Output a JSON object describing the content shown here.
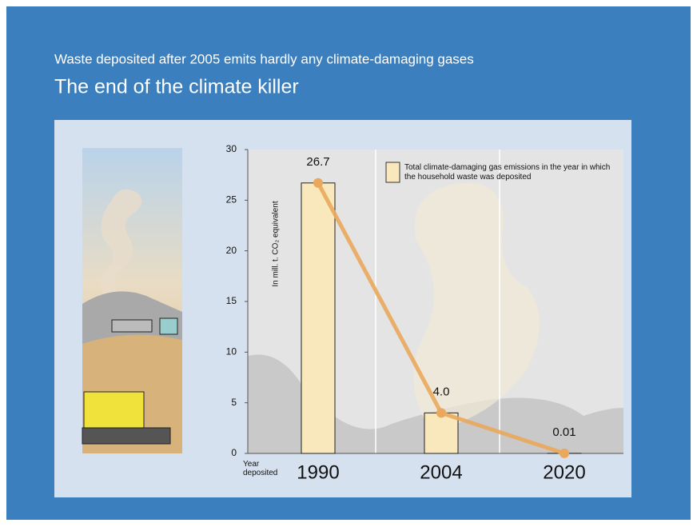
{
  "chart_data": {
    "type": "bar",
    "subtitle": "Waste deposited after 2005 emits hardly any climate-damaging gases",
    "title": "The end of the climate killer",
    "y_label": "In mill. t. CO₂ equivalent",
    "x_label": "Year deposited",
    "categories": [
      "1990",
      "2004",
      "2020"
    ],
    "series": [
      {
        "name": "Total climate-damaging gas emissions in the year in which the household waste was deposited",
        "color": "#f8e8bb",
        "line_color": "#e9a85c",
        "values": [
          26.7,
          4.0,
          0.01
        ],
        "value_labels": [
          "26.7",
          "4.0",
          "0.01"
        ]
      }
    ],
    "ylim": [
      0,
      30
    ],
    "yticks": [
      0,
      5,
      10,
      15,
      20,
      25,
      30
    ]
  }
}
